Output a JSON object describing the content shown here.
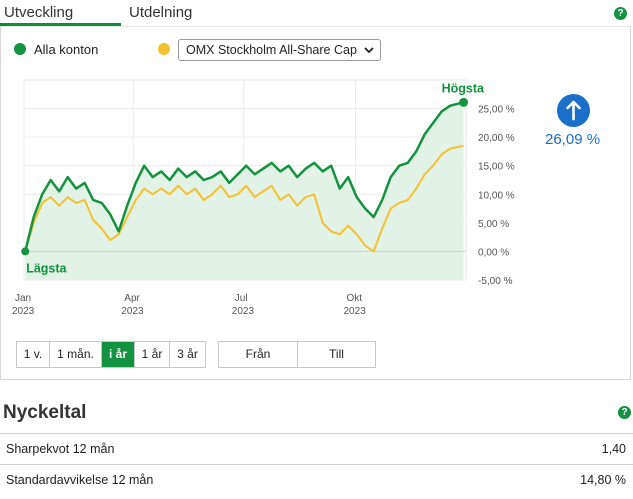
{
  "tabs": [
    {
      "label": "Utveckling",
      "active": true
    },
    {
      "label": "Utdelning",
      "active": false
    }
  ],
  "legend": {
    "series1_label": "Alla konton",
    "series1_color": "#13923f",
    "series2_color": "#f2c12e",
    "compare_select": "OMX Stockholm All-Share Cap"
  },
  "performance": {
    "value": "26,09 %",
    "direction": "up",
    "color": "#1a6fc9"
  },
  "annotations": {
    "high": "Högsta",
    "low": "Lägsta"
  },
  "chart_data": {
    "type": "line",
    "x_tick_labels": [
      {
        "month": "Jan",
        "year": "2023"
      },
      {
        "month": "Apr",
        "year": "2023"
      },
      {
        "month": "Jul",
        "year": "2023"
      },
      {
        "month": "Okt",
        "year": "2023"
      }
    ],
    "y_tick_labels": [
      "25,00 %",
      "20,00 %",
      "15,00 %",
      "10,00 %",
      "5,00 %",
      "0,00 %",
      "-5,00 %"
    ],
    "y_ticks": [
      25,
      20,
      15,
      10,
      5,
      0,
      -5
    ],
    "ylim": [
      -5,
      30
    ],
    "x_range": [
      "2023-01-01",
      "2023-12-31"
    ],
    "grid": true,
    "series": [
      {
        "name": "Alla konton",
        "color": "#13923f",
        "x": [
          "2023-01-02",
          "2023-01-09",
          "2023-01-16",
          "2023-01-23",
          "2023-01-30",
          "2023-02-06",
          "2023-02-13",
          "2023-02-20",
          "2023-02-27",
          "2023-03-06",
          "2023-03-13",
          "2023-03-20",
          "2023-03-27",
          "2023-04-03",
          "2023-04-10",
          "2023-04-17",
          "2023-04-24",
          "2023-05-01",
          "2023-05-08",
          "2023-05-15",
          "2023-05-22",
          "2023-05-29",
          "2023-06-05",
          "2023-06-12",
          "2023-06-19",
          "2023-06-26",
          "2023-07-03",
          "2023-07-10",
          "2023-07-17",
          "2023-07-24",
          "2023-07-31",
          "2023-08-07",
          "2023-08-14",
          "2023-08-21",
          "2023-08-28",
          "2023-09-04",
          "2023-09-11",
          "2023-09-18",
          "2023-09-25",
          "2023-10-02",
          "2023-10-09",
          "2023-10-16",
          "2023-10-23",
          "2023-10-30",
          "2023-11-06",
          "2023-11-13",
          "2023-11-20",
          "2023-11-27",
          "2023-12-04",
          "2023-12-11",
          "2023-12-18",
          "2023-12-29"
        ],
        "values": [
          0.0,
          6.0,
          10.0,
          12.5,
          10.5,
          13.0,
          11.0,
          12.0,
          9.0,
          8.5,
          6.5,
          3.5,
          8.0,
          12.0,
          15.0,
          13.0,
          14.0,
          12.5,
          14.5,
          13.0,
          14.0,
          12.5,
          13.0,
          14.0,
          12.0,
          13.5,
          15.0,
          13.5,
          14.5,
          15.5,
          14.0,
          15.0,
          13.0,
          14.5,
          15.5,
          14.0,
          15.0,
          11.0,
          13.0,
          9.5,
          7.5,
          6.0,
          9.0,
          13.0,
          15.0,
          15.5,
          17.5,
          20.5,
          22.5,
          24.5,
          25.5,
          26.09
        ]
      },
      {
        "name": "OMX Stockholm All-Share Cap",
        "color": "#f2c12e",
        "x": [
          "2023-01-02",
          "2023-01-09",
          "2023-01-16",
          "2023-01-23",
          "2023-01-30",
          "2023-02-06",
          "2023-02-13",
          "2023-02-20",
          "2023-02-27",
          "2023-03-06",
          "2023-03-13",
          "2023-03-20",
          "2023-03-27",
          "2023-04-03",
          "2023-04-10",
          "2023-04-17",
          "2023-04-24",
          "2023-05-01",
          "2023-05-08",
          "2023-05-15",
          "2023-05-22",
          "2023-05-29",
          "2023-06-05",
          "2023-06-12",
          "2023-06-19",
          "2023-06-26",
          "2023-07-03",
          "2023-07-10",
          "2023-07-17",
          "2023-07-24",
          "2023-07-31",
          "2023-08-07",
          "2023-08-14",
          "2023-08-21",
          "2023-08-28",
          "2023-09-04",
          "2023-09-11",
          "2023-09-18",
          "2023-09-25",
          "2023-10-02",
          "2023-10-09",
          "2023-10-16",
          "2023-10-23",
          "2023-10-30",
          "2023-11-06",
          "2023-11-13",
          "2023-11-20",
          "2023-11-27",
          "2023-12-04",
          "2023-12-11",
          "2023-12-18",
          "2023-12-29"
        ],
        "values": [
          0.0,
          5.0,
          8.5,
          9.5,
          8.0,
          9.5,
          8.5,
          9.0,
          5.5,
          4.0,
          2.0,
          3.0,
          6.0,
          9.0,
          11.0,
          10.0,
          11.0,
          10.0,
          11.5,
          10.0,
          11.0,
          9.0,
          10.0,
          11.5,
          9.5,
          10.0,
          11.5,
          9.5,
          10.5,
          11.5,
          9.0,
          10.0,
          8.0,
          9.5,
          10.0,
          5.0,
          3.5,
          3.0,
          4.5,
          3.0,
          1.0,
          0.0,
          4.0,
          7.5,
          8.5,
          9.0,
          11.0,
          13.5,
          15.0,
          17.0,
          18.0,
          18.5
        ]
      }
    ]
  },
  "range_buttons": [
    {
      "label": "1 v.",
      "active": false
    },
    {
      "label": "1 mån.",
      "active": false
    },
    {
      "label": "i år",
      "active": true
    },
    {
      "label": "1 år",
      "active": false
    },
    {
      "label": "3 år",
      "active": false
    }
  ],
  "date_buttons": {
    "from": "Från",
    "to": "Till"
  },
  "key_figures": {
    "title": "Nyckeltal",
    "rows": [
      {
        "label": "Sharpekvot 12 mån",
        "value": "1,40"
      },
      {
        "label": "Standardavvikelse 12 mån",
        "value": "14,80 %"
      }
    ]
  }
}
